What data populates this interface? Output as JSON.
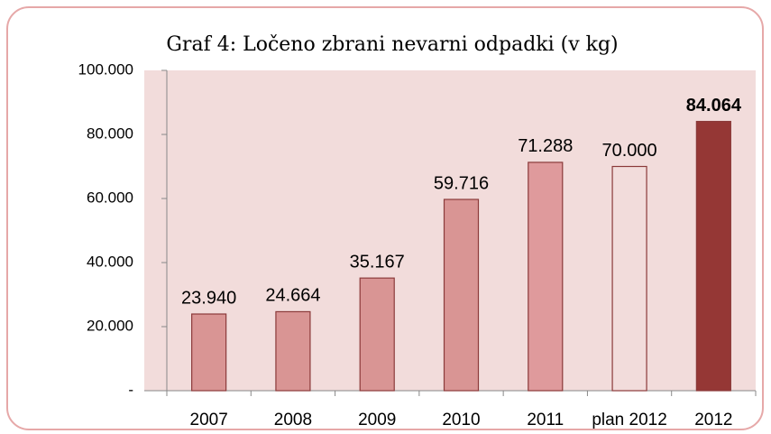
{
  "chart_data": {
    "type": "bar",
    "title": "Graf 4: Ločeno zbrani nevarni odpadki (v kg)",
    "categories": [
      "2007",
      "2008",
      "2009",
      "2010",
      "2011",
      "plan 2012",
      "2012"
    ],
    "values": [
      23940,
      24664,
      35167,
      59716,
      71288,
      70000,
      84064
    ],
    "value_labels": [
      "23.940",
      "24.664",
      "35.167",
      "59.716",
      "71.288",
      "70.000",
      "84.064"
    ],
    "label_bold": [
      false,
      false,
      false,
      false,
      false,
      false,
      true
    ],
    "colors": [
      "#d99594",
      "#d99594",
      "#d99594",
      "#d99594",
      "#df9a9c",
      "#f2dcdb",
      "#953735"
    ],
    "ylim": [
      0,
      100000
    ],
    "yticks": [
      {
        "value": 0,
        "label": "-"
      },
      {
        "value": 20000,
        "label": "20.000"
      },
      {
        "value": 40000,
        "label": "40.000"
      },
      {
        "value": 60000,
        "label": "60.000"
      },
      {
        "value": 80000,
        "label": "80.000"
      },
      {
        "value": 100000,
        "label": "100.000"
      }
    ],
    "grid": false
  }
}
